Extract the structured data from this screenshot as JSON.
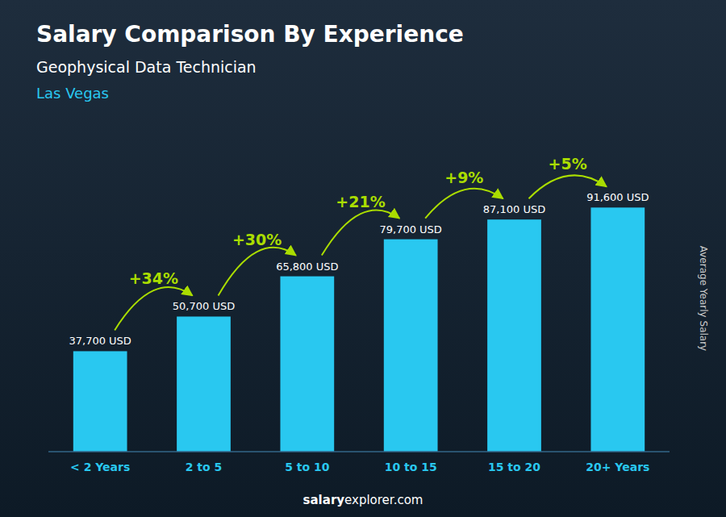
{
  "chart_data": {
    "type": "bar",
    "title": "Salary Comparison By Experience",
    "subtitle": "Geophysical Data Technician",
    "annotations": [
      "Las Vegas"
    ],
    "change_labels": [
      "+34%",
      "+30%",
      "+21%",
      "+9%",
      "+5%"
    ],
    "footer": [
      "salary",
      "explorer.com"
    ],
    "y_label": "Average Yearly Salary",
    "categories": [
      "< 2 Years",
      "2 to 5",
      "5 to 10",
      "10 to 15",
      "15 to 20",
      "20+ Years"
    ],
    "values": [
      37700,
      50700,
      65800,
      79700,
      87100,
      91600
    ],
    "value_labels": [
      "37,700 USD",
      "50,700 USD",
      "65,800 USD",
      "79,700 USD",
      "87,100 USD",
      "91,600 USD"
    ],
    "data_labels": true,
    "color": "#29c8f0",
    "ylim": [
      0,
      115000
    ],
    "grid": false,
    "tick_labels": "x"
  }
}
